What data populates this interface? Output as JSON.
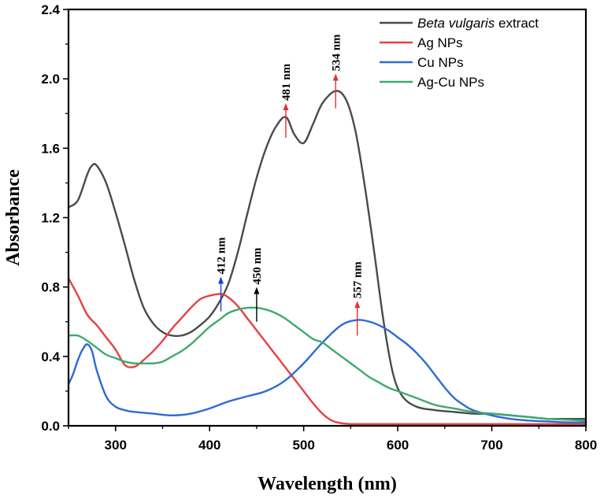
{
  "chart_data": {
    "type": "line",
    "xlabel": "Wavelength (nm)",
    "ylabel": "Absorbance",
    "xlim": [
      250,
      800
    ],
    "ylim": [
      0,
      2.4
    ],
    "xticks": [
      300,
      400,
      500,
      600,
      700,
      800
    ],
    "xtick_labels": [
      "300",
      "400",
      "500",
      "600",
      "700",
      "800"
    ],
    "yticks": [
      0,
      0.4,
      0.8,
      1.2,
      1.6,
      2.0,
      2.4
    ],
    "ytick_labels": [
      "0.0",
      "0.4",
      "0.8",
      "1.2",
      "1.6",
      "2.0",
      "2.4"
    ],
    "legend_position": "top-right",
    "series": [
      {
        "key": "beta",
        "name_italic": "Beta vulgaris",
        "name_rest": " extract",
        "color": "#4a4a4a",
        "x": [
          250,
          260,
          270,
          275,
          280,
          290,
          300,
          310,
          320,
          330,
          340,
          350,
          360,
          370,
          380,
          390,
          400,
          410,
          420,
          430,
          440,
          450,
          460,
          470,
          481,
          490,
          500,
          510,
          520,
          534,
          545,
          555,
          565,
          575,
          585,
          595,
          605,
          620,
          640,
          660,
          680,
          700,
          720,
          740,
          760,
          780,
          800
        ],
        "y": [
          1.26,
          1.3,
          1.45,
          1.5,
          1.5,
          1.4,
          1.23,
          1.04,
          0.84,
          0.68,
          0.59,
          0.54,
          0.52,
          0.52,
          0.54,
          0.58,
          0.63,
          0.71,
          0.82,
          1.0,
          1.22,
          1.43,
          1.6,
          1.72,
          1.78,
          1.68,
          1.63,
          1.74,
          1.86,
          1.93,
          1.88,
          1.7,
          1.38,
          1.0,
          0.6,
          0.3,
          0.17,
          0.11,
          0.09,
          0.08,
          0.07,
          0.07,
          0.06,
          0.05,
          0.04,
          0.04,
          0.04
        ]
      },
      {
        "key": "ag",
        "name": "Ag NPs",
        "color": "#e8403f",
        "x": [
          250,
          260,
          270,
          280,
          290,
          300,
          310,
          320,
          330,
          340,
          350,
          360,
          370,
          380,
          390,
          400,
          412,
          420,
          430,
          440,
          450,
          460,
          470,
          480,
          490,
          500,
          510,
          520,
          530,
          540,
          550,
          560,
          580,
          600,
          650,
          700,
          750,
          800
        ],
        "y": [
          0.85,
          0.75,
          0.64,
          0.58,
          0.51,
          0.44,
          0.35,
          0.34,
          0.38,
          0.43,
          0.49,
          0.56,
          0.62,
          0.68,
          0.73,
          0.75,
          0.76,
          0.74,
          0.69,
          0.62,
          0.55,
          0.48,
          0.41,
          0.34,
          0.27,
          0.2,
          0.13,
          0.07,
          0.03,
          0.015,
          0.01,
          0.01,
          0.01,
          0.01,
          0.01,
          0.01,
          0.01,
          0.01
        ]
      },
      {
        "key": "cu",
        "name": "Cu NPs",
        "color": "#2d6ad6",
        "x": [
          250,
          255,
          260,
          265,
          270,
          275,
          280,
          290,
          300,
          310,
          320,
          340,
          360,
          380,
          400,
          420,
          440,
          460,
          480,
          500,
          520,
          540,
          557,
          570,
          580,
          590,
          600,
          610,
          620,
          630,
          640,
          650,
          660,
          670,
          680,
          700,
          720,
          740,
          760,
          780,
          800
        ],
        "y": [
          0.24,
          0.3,
          0.38,
          0.44,
          0.47,
          0.43,
          0.32,
          0.17,
          0.11,
          0.09,
          0.08,
          0.07,
          0.06,
          0.07,
          0.1,
          0.14,
          0.17,
          0.2,
          0.26,
          0.36,
          0.48,
          0.58,
          0.61,
          0.6,
          0.58,
          0.55,
          0.51,
          0.47,
          0.42,
          0.36,
          0.29,
          0.22,
          0.16,
          0.12,
          0.09,
          0.06,
          0.04,
          0.03,
          0.025,
          0.02,
          0.02
        ]
      },
      {
        "key": "agcu",
        "name": "Ag-Cu NPs",
        "color": "#3faa6c",
        "x": [
          250,
          260,
          270,
          280,
          290,
          300,
          310,
          320,
          330,
          340,
          350,
          360,
          370,
          380,
          390,
          400,
          410,
          420,
          430,
          440,
          450,
          460,
          470,
          480,
          490,
          500,
          510,
          520,
          530,
          540,
          550,
          560,
          570,
          580,
          590,
          600,
          620,
          640,
          660,
          680,
          700,
          720,
          740,
          760,
          780,
          800
        ],
        "y": [
          0.52,
          0.52,
          0.49,
          0.45,
          0.41,
          0.39,
          0.37,
          0.36,
          0.36,
          0.36,
          0.37,
          0.4,
          0.43,
          0.47,
          0.52,
          0.57,
          0.61,
          0.65,
          0.67,
          0.68,
          0.68,
          0.67,
          0.65,
          0.62,
          0.58,
          0.54,
          0.5,
          0.48,
          0.44,
          0.4,
          0.36,
          0.32,
          0.28,
          0.25,
          0.22,
          0.2,
          0.16,
          0.12,
          0.1,
          0.08,
          0.07,
          0.06,
          0.05,
          0.04,
          0.035,
          0.03
        ]
      }
    ],
    "annotations": [
      {
        "label": "412 nm",
        "x": 412,
        "y_base": 0.66,
        "y_tip": 0.86,
        "color": "#1f3fd6"
      },
      {
        "label": "450 nm",
        "x": 450,
        "y_base": 0.6,
        "y_tip": 0.8,
        "color": "#000000"
      },
      {
        "label": "481 nm",
        "x": 481,
        "y_base": 1.66,
        "y_tip": 1.86,
        "color": "#e53030"
      },
      {
        "label": "534 nm",
        "x": 534,
        "y_base": 1.83,
        "y_tip": 2.03,
        "color": "#e53030"
      },
      {
        "label": "557 nm",
        "x": 557,
        "y_base": 0.52,
        "y_tip": 0.72,
        "color": "#e53030"
      }
    ]
  }
}
